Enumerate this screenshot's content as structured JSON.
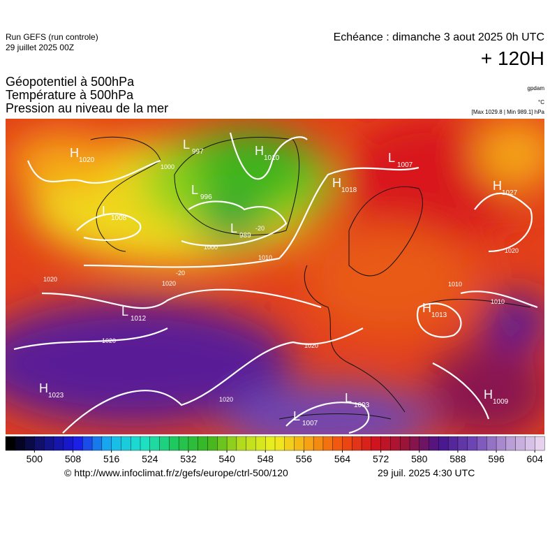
{
  "header": {
    "run": "Run GEFS (run controle)",
    "date": "29 juillet 2025 00Z",
    "valid": "Echéance : dimanche 3 aout 2025 0h UTC",
    "lead": "+ 120H",
    "fields": [
      "Géopotentiel à 500hPa",
      "Température à 500hPa",
      "Pression au niveau de la mer"
    ],
    "unit_geo": "gpdam",
    "unit_temp": "°C",
    "unit_pressure": "[Max 1029.8 | Min 989.1] hPa"
  },
  "map": {
    "centers": [
      {
        "kind": "H",
        "value": "1020"
      },
      {
        "kind": "L",
        "value": "997"
      },
      {
        "kind": "H",
        "value": "1010"
      },
      {
        "kind": "L",
        "value": "1007"
      },
      {
        "kind": "H",
        "value": "1018"
      },
      {
        "kind": "H",
        "value": "1027"
      },
      {
        "kind": "L",
        "value": "1008"
      },
      {
        "kind": "L",
        "value": "996"
      },
      {
        "kind": "L",
        "value": "989"
      },
      {
        "kind": "L",
        "value": "1012"
      },
      {
        "kind": "H",
        "value": "1023"
      },
      {
        "kind": "L",
        "value": "1003"
      },
      {
        "kind": "L",
        "value": "1007"
      },
      {
        "kind": "H",
        "value": "1013"
      },
      {
        "kind": "H",
        "value": "1009"
      }
    ],
    "isobar_labels": [
      "1000",
      "1000",
      "1010",
      "1020",
      "1020",
      "1010",
      "1010",
      "1020",
      "1020",
      "1020",
      "1020",
      "-20",
      "-20"
    ]
  },
  "colorbar": {
    "lim": [
      494,
      606
    ],
    "ticks": [
      500,
      508,
      516,
      524,
      532,
      540,
      548,
      556,
      564,
      572,
      580,
      588,
      596,
      604
    ],
    "colors": [
      "#000000",
      "#12127a",
      "#1a1ae6",
      "#17b4f0",
      "#1ee2c8",
      "#1ec85a",
      "#3cb41e",
      "#b4dc1e",
      "#f0f01e",
      "#f5a514",
      "#f0500f",
      "#d2141e",
      "#96143c",
      "#46148c",
      "#6e46b4",
      "#b496d2",
      "#e6d2ee"
    ]
  },
  "footer": {
    "source": "© http://www.infoclimat.fr/z/gefs/europe/ctrl-500/120",
    "issued": "29 juil. 2025  4:30 UTC"
  }
}
